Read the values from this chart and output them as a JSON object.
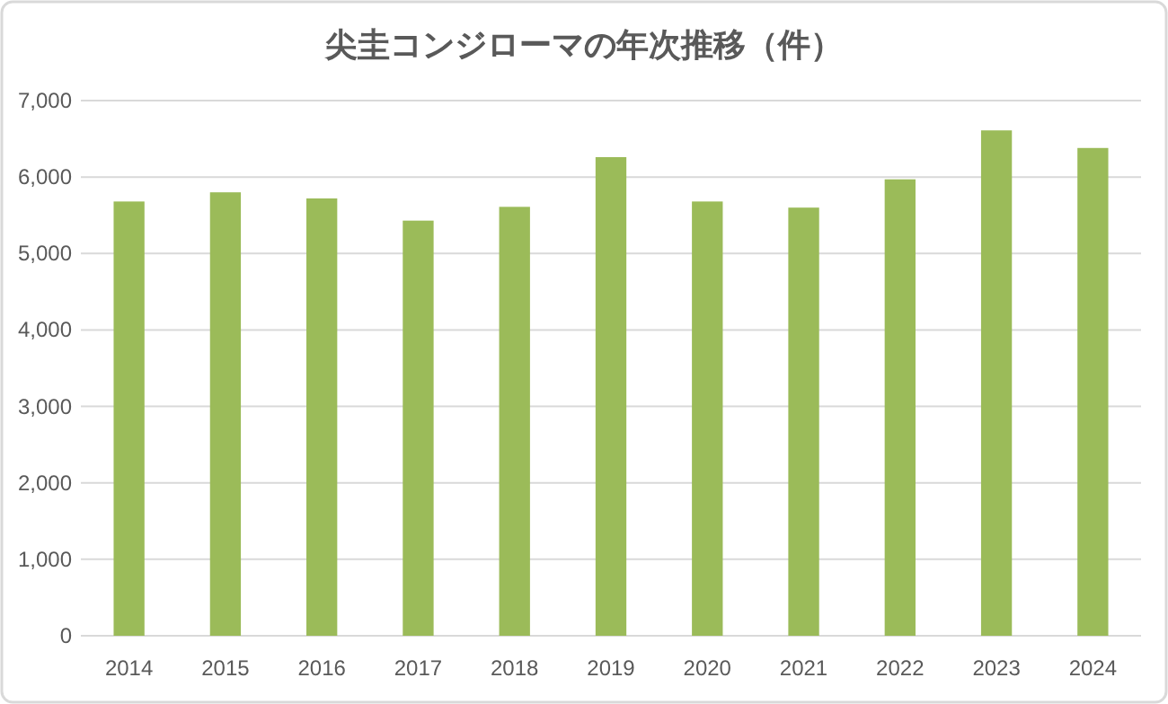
{
  "chart_data": {
    "type": "bar",
    "title": "尖圭コンジローマの年次推移（件）",
    "categories": [
      "2014",
      "2015",
      "2016",
      "2017",
      "2018",
      "2019",
      "2020",
      "2021",
      "2022",
      "2023",
      "2024"
    ],
    "values": [
      5680,
      5800,
      5720,
      5430,
      5610,
      6260,
      5680,
      5600,
      5970,
      6610,
      6380
    ],
    "color": "#9bbb59",
    "ylim": [
      0,
      7000
    ],
    "yticks": [
      0,
      {
        "value": 1000,
        "label": "1,000"
      },
      {
        "value": 2000,
        "label": "2,000"
      },
      {
        "value": 3000,
        "label": "3,000"
      },
      {
        "value": 4000,
        "label": "4,000"
      },
      {
        "value": 5000,
        "label": "5,000"
      },
      {
        "value": 6000,
        "label": "6,000"
      },
      {
        "value": 7000,
        "label": "7,000"
      }
    ],
    "grid": "y"
  }
}
